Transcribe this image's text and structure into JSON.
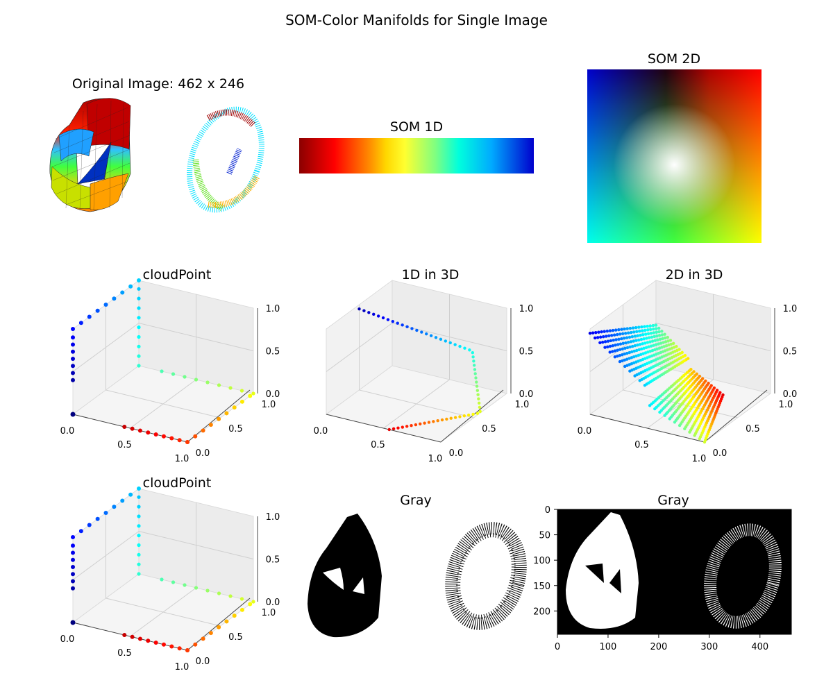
{
  "figure": {
    "title": "SOM-Color Manifolds for Single Image"
  },
  "colors": {
    "jet": [
      "#7f0000",
      "#ff0000",
      "#ff7f00",
      "#ffff00",
      "#7fff7f",
      "#00ffff",
      "#007fff",
      "#0000ff",
      "#00007f"
    ]
  },
  "chart_data": [
    {
      "type": "other",
      "title": "Original Image: 462 x 246",
      "description_kind": "image-panel"
    },
    {
      "type": "heatmap",
      "title": "SOM 1D",
      "colormap": [
        "#8b0000",
        "#ff0000",
        "#ff8c00",
        "#ffff00",
        "#00ffff",
        "#0096ff",
        "#0000cd"
      ]
    },
    {
      "type": "heatmap",
      "title": "SOM 2D",
      "corners": {
        "top-left": "#0000cc",
        "top-right": "#ff0000",
        "bottom-left": "#00ffff",
        "bottom-right": "#ffff00",
        "center": "#ffffff"
      }
    },
    {
      "type": "scatter",
      "title": "cloudPoint",
      "xlim": [
        0,
        1
      ],
      "ylim": [
        0,
        1
      ],
      "zlim": [
        0,
        1
      ],
      "xticks": [
        "0.0",
        "0.5",
        "1.0"
      ],
      "yticks": [
        "0.0",
        "0.5",
        "1.0"
      ],
      "zticks": [
        "0.0",
        "0.5",
        "1.0"
      ]
    },
    {
      "type": "scatter",
      "title": "1D in 3D",
      "xlim": [
        0,
        1
      ],
      "ylim": [
        0,
        1
      ],
      "zlim": [
        0,
        1
      ],
      "xticks": [
        "0.0",
        "0.5",
        "1.0"
      ],
      "yticks": [
        "0.0",
        "0.5",
        "1.0"
      ],
      "zticks": [
        "0.0",
        "0.5",
        "1.0"
      ]
    },
    {
      "type": "scatter",
      "title": "2D in 3D",
      "xlim": [
        0,
        1
      ],
      "ylim": [
        0,
        1
      ],
      "zlim": [
        0,
        1
      ],
      "xticks": [
        "0.0",
        "0.5",
        "1.0"
      ],
      "yticks": [
        "0.0",
        "0.5",
        "1.0"
      ],
      "zticks": [
        "0.0",
        "0.5",
        "1.0"
      ]
    },
    {
      "type": "scatter",
      "title": "cloudPoint",
      "xlim": [
        0,
        1
      ],
      "ylim": [
        0,
        1
      ],
      "zlim": [
        0,
        1
      ],
      "xticks": [
        "0.0",
        "0.5",
        "1.0"
      ],
      "yticks": [
        "0.0",
        "0.5",
        "1.0"
      ],
      "zticks": [
        "0.0",
        "0.5",
        "1.0"
      ]
    },
    {
      "type": "other",
      "title": "Gray",
      "description_kind": "binary-image"
    },
    {
      "type": "other",
      "title": "Gray",
      "description_kind": "binary-image-axes",
      "xlim": [
        0,
        462
      ],
      "ylim": [
        246,
        0
      ],
      "xticks": [
        "0",
        "100",
        "200",
        "300",
        "400"
      ],
      "yticks": [
        "0",
        "50",
        "100",
        "150",
        "200"
      ]
    }
  ]
}
